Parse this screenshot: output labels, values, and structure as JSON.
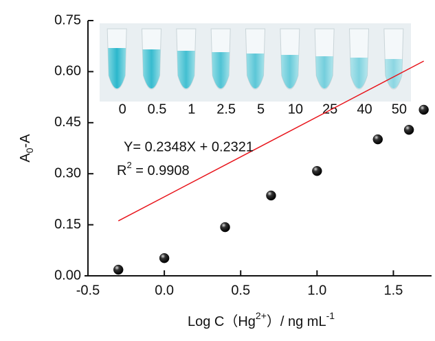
{
  "chart_data": {
    "type": "scatter",
    "x": [
      -0.301,
      0,
      0.398,
      0.699,
      1,
      1.398,
      1.602,
      1.699
    ],
    "series": [
      {
        "color": "#111111",
        "values": [
          0.018,
          0.052,
          0.143,
          0.236,
          0.308,
          0.401,
          0.429,
          0.488
        ]
      }
    ],
    "fit": {
      "slope": 0.2348,
      "intercept": 0.2321,
      "color": "#e8141b"
    },
    "xlim": [
      -0.5,
      1.75
    ],
    "xticks": [
      {
        "value": -0.5,
        "label": "-0.5"
      },
      {
        "value": 0,
        "label": "0.0"
      },
      {
        "value": 0.5,
        "label": "0.5"
      },
      {
        "value": 1,
        "label": "1.0"
      },
      {
        "value": 1.5,
        "label": "1.5"
      }
    ],
    "ylim": [
      0,
      0.75
    ],
    "yticks": [
      {
        "value": 0,
        "label": "0.00"
      },
      {
        "value": 0.15,
        "label": "0.15"
      },
      {
        "value": 0.3,
        "label": "0.30"
      },
      {
        "value": 0.45,
        "label": "0.45"
      },
      {
        "value": 0.6,
        "label": "0.60"
      },
      {
        "value": 0.75,
        "label": "0.75"
      }
    ],
    "y_label": [
      "A",
      "0",
      "-A"
    ],
    "x_label": [
      "Log C（Hg",
      "2+",
      "）/ ng mL",
      "-1"
    ],
    "annotations": {
      "equation": "Y= 0.2348X + 0.2321",
      "r2": [
        "R",
        "2",
        " = 0.9908"
      ]
    },
    "inset": {
      "categories": [
        "0",
        "0.5",
        "1",
        "2.5",
        "5",
        "10",
        "25",
        "40",
        "50"
      ]
    }
  }
}
